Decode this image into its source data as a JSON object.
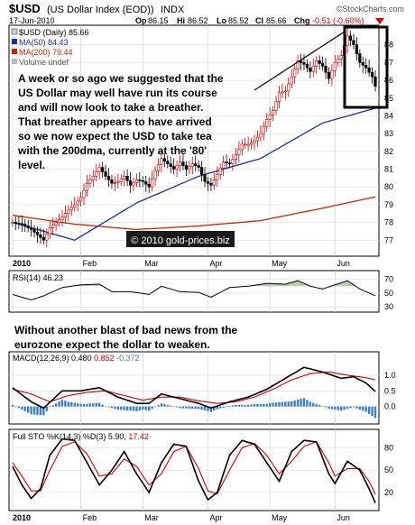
{
  "chart_data": {
    "type": "candlestick",
    "symbol": "$USD",
    "symbol_desc": "(US Dollar Index (EOD))",
    "exchange": "INDX",
    "date": "17-Jun-2010",
    "watermark": "©StockCharts.com",
    "quote": {
      "op_label": "Op",
      "op": "86.15",
      "hi_label": "Hi",
      "hi": "86.52",
      "lo_label": "Lo",
      "lo": "85.52",
      "cl_label": "Cl",
      "cl": "85.66",
      "chg_label": "Chg",
      "chg": "-0.51 (-0.60%)"
    },
    "legend": [
      {
        "label": "$USD (Daily) 85.66",
        "color": "#000000"
      },
      {
        "label": "MA(50) 84.43",
        "color": "#1f2f9f"
      },
      {
        "label": "MA(200) 79.44",
        "color": "#cc2200"
      },
      {
        "label": "Volume undef",
        "color": "#888888"
      }
    ],
    "colors": {
      "price": "#000000",
      "ma50": "#1f2f9f",
      "ma200": "#cc2200",
      "up": "#cc0000",
      "down": "#000000",
      "highlight_box": "#000000"
    },
    "copyright": "© 2010 gold-prices.biz",
    "annotation": "A week or so ago we suggested that the US Dollar may well have run its course and will now look to take a breather. That breather appears to have arrived so we now expect the USD to take tea with the 200dma, currently at the '80' level.",
    "annotation_lines": [
      "A week or so ago we suggested that the",
      "US Dollar may well have run its course",
      "and will now look to take a breather.",
      "That breather appears to have arrived",
      "so we now expect the USD to take tea",
      "with the 200dma, currently at the '80'",
      "level."
    ],
    "x_labels": [
      "2010",
      "Feb",
      "Mar",
      "Apr",
      "May",
      "Jun"
    ],
    "x_label_pos": [
      0,
      22,
      42,
      63,
      83,
      104
    ],
    "n_days": 118,
    "price_axis": {
      "ticks": [
        77,
        78,
        79,
        80,
        81,
        82,
        83,
        84,
        85,
        86,
        87,
        88
      ],
      "ylim": [
        76.2,
        89.0
      ]
    },
    "price_anchors": [
      [
        0,
        78.0
      ],
      [
        3,
        77.9
      ],
      [
        6,
        77.6
      ],
      [
        8,
        77.3
      ],
      [
        10,
        77.0
      ],
      [
        12,
        77.7
      ],
      [
        14,
        78.0
      ],
      [
        16,
        78.3
      ],
      [
        18,
        78.7
      ],
      [
        20,
        79.0
      ],
      [
        22,
        79.4
      ],
      [
        24,
        80.2
      ],
      [
        26,
        80.6
      ],
      [
        28,
        81.1
      ],
      [
        30,
        80.6
      ],
      [
        32,
        80.2
      ],
      [
        34,
        80.3
      ],
      [
        36,
        80.6
      ],
      [
        38,
        80.1
      ],
      [
        40,
        80.4
      ],
      [
        42,
        80.3
      ],
      [
        44,
        80.0
      ],
      [
        46,
        80.9
      ],
      [
        48,
        81.6
      ],
      [
        50,
        81.3
      ],
      [
        52,
        81.0
      ],
      [
        54,
        81.4
      ],
      [
        56,
        81.0
      ],
      [
        58,
        81.3
      ],
      [
        60,
        81.1
      ],
      [
        62,
        80.3
      ],
      [
        64,
        80.1
      ],
      [
        66,
        80.7
      ],
      [
        68,
        81.4
      ],
      [
        70,
        81.3
      ],
      [
        72,
        81.8
      ],
      [
        74,
        82.4
      ],
      [
        76,
        82.4
      ],
      [
        78,
        82.6
      ],
      [
        80,
        83.0
      ],
      [
        82,
        83.8
      ],
      [
        84,
        84.3
      ],
      [
        86,
        85.3
      ],
      [
        88,
        85.4
      ],
      [
        90,
        86.2
      ],
      [
        92,
        87.1
      ],
      [
        94,
        86.9
      ],
      [
        96,
        86.5
      ],
      [
        98,
        87.1
      ],
      [
        100,
        86.8
      ],
      [
        102,
        86.1
      ],
      [
        104,
        87.0
      ],
      [
        106,
        87.4
      ],
      [
        108,
        88.5
      ],
      [
        110,
        88.0
      ],
      [
        112,
        87.0
      ],
      [
        114,
        86.7
      ],
      [
        116,
        86.2
      ],
      [
        117,
        85.66
      ]
    ],
    "ma50_anchors": [
      [
        0,
        78.0
      ],
      [
        20,
        77.0
      ],
      [
        40,
        79.1
      ],
      [
        60,
        80.6
      ],
      [
        80,
        81.6
      ],
      [
        100,
        83.6
      ],
      [
        117,
        84.43
      ]
    ],
    "ma200_anchors": [
      [
        0,
        78.4
      ],
      [
        20,
        77.9
      ],
      [
        40,
        77.6
      ],
      [
        60,
        77.8
      ],
      [
        80,
        78.1
      ],
      [
        100,
        78.8
      ],
      [
        117,
        79.44
      ]
    ],
    "rsi": {
      "label": "RSI(14) 46.23",
      "ticks": [
        30,
        50,
        70
      ],
      "ylim": [
        25,
        80
      ],
      "anchors": [
        [
          0,
          48
        ],
        [
          6,
          40
        ],
        [
          10,
          46
        ],
        [
          16,
          58
        ],
        [
          22,
          62
        ],
        [
          28,
          63
        ],
        [
          32,
          52
        ],
        [
          38,
          52
        ],
        [
          44,
          48
        ],
        [
          48,
          60
        ],
        [
          54,
          52
        ],
        [
          60,
          51
        ],
        [
          64,
          44
        ],
        [
          70,
          58
        ],
        [
          76,
          60
        ],
        [
          82,
          64
        ],
        [
          88,
          63
        ],
        [
          92,
          68
        ],
        [
          96,
          60
        ],
        [
          100,
          56
        ],
        [
          104,
          62
        ],
        [
          108,
          68
        ],
        [
          112,
          56
        ],
        [
          117,
          46.23
        ]
      ]
    },
    "caption_lines": [
      "Without another blast of bad news from the",
      "eurozone expect the dollar to weaken."
    ],
    "macd": {
      "label": "MACD(12,26,9)",
      "macd_value": "0.480",
      "signal_value": "0.852",
      "hist_value": "-0.372",
      "ticks": [
        0.0,
        0.5,
        1.0
      ],
      "tick_labels": [
        "0.0",
        "0.5",
        "1.0"
      ],
      "ylim": [
        -0.5,
        1.4
      ],
      "macd_anchors": [
        [
          0,
          0.6
        ],
        [
          6,
          0.15
        ],
        [
          10,
          -0.05
        ],
        [
          16,
          0.5
        ],
        [
          22,
          0.5
        ],
        [
          28,
          0.6
        ],
        [
          34,
          0.3
        ],
        [
          40,
          0.1
        ],
        [
          44,
          0.1
        ],
        [
          48,
          0.4
        ],
        [
          54,
          0.25
        ],
        [
          60,
          0.1
        ],
        [
          64,
          -0.05
        ],
        [
          70,
          0.15
        ],
        [
          76,
          0.3
        ],
        [
          82,
          0.55
        ],
        [
          88,
          0.9
        ],
        [
          94,
          1.25
        ],
        [
          100,
          1.1
        ],
        [
          106,
          0.9
        ],
        [
          110,
          0.95
        ],
        [
          114,
          0.75
        ],
        [
          117,
          0.48
        ]
      ],
      "signal_anchors": [
        [
          0,
          0.55
        ],
        [
          6,
          0.4
        ],
        [
          12,
          0.15
        ],
        [
          18,
          0.35
        ],
        [
          24,
          0.45
        ],
        [
          30,
          0.5
        ],
        [
          36,
          0.35
        ],
        [
          42,
          0.2
        ],
        [
          48,
          0.3
        ],
        [
          54,
          0.3
        ],
        [
          60,
          0.18
        ],
        [
          66,
          0.1
        ],
        [
          72,
          0.15
        ],
        [
          78,
          0.3
        ],
        [
          84,
          0.55
        ],
        [
          90,
          0.85
        ],
        [
          96,
          1.05
        ],
        [
          102,
          1.1
        ],
        [
          108,
          1.0
        ],
        [
          114,
          0.92
        ],
        [
          117,
          0.852
        ]
      ]
    },
    "sto": {
      "label": "Full STO %K(14,3) %D(3) 5.90,",
      "d_value": "17.42",
      "ticks": [
        20,
        50,
        80
      ],
      "ylim": [
        -2,
        100
      ],
      "k_anchors": [
        [
          0,
          55
        ],
        [
          3,
          30
        ],
        [
          6,
          12
        ],
        [
          9,
          25
        ],
        [
          12,
          70
        ],
        [
          16,
          92
        ],
        [
          20,
          90
        ],
        [
          24,
          60
        ],
        [
          28,
          30
        ],
        [
          32,
          50
        ],
        [
          36,
          75
        ],
        [
          40,
          45
        ],
        [
          44,
          20
        ],
        [
          48,
          60
        ],
        [
          52,
          85
        ],
        [
          56,
          82
        ],
        [
          60,
          35
        ],
        [
          63,
          10
        ],
        [
          66,
          20
        ],
        [
          70,
          70
        ],
        [
          74,
          90
        ],
        [
          78,
          85
        ],
        [
          82,
          60
        ],
        [
          86,
          35
        ],
        [
          90,
          75
        ],
        [
          94,
          90
        ],
        [
          98,
          88
        ],
        [
          102,
          45
        ],
        [
          104,
          32
        ],
        [
          108,
          62
        ],
        [
          112,
          50
        ],
        [
          115,
          25
        ],
        [
          117,
          5.9
        ]
      ],
      "d_anchors": [
        [
          0,
          60
        ],
        [
          3,
          42
        ],
        [
          6,
          22
        ],
        [
          9,
          22
        ],
        [
          12,
          50
        ],
        [
          16,
          82
        ],
        [
          20,
          88
        ],
        [
          24,
          72
        ],
        [
          28,
          42
        ],
        [
          32,
          45
        ],
        [
          36,
          65
        ],
        [
          40,
          55
        ],
        [
          44,
          30
        ],
        [
          48,
          45
        ],
        [
          52,
          75
        ],
        [
          56,
          82
        ],
        [
          60,
          52
        ],
        [
          63,
          22
        ],
        [
          66,
          18
        ],
        [
          70,
          50
        ],
        [
          74,
          80
        ],
        [
          78,
          86
        ],
        [
          82,
          70
        ],
        [
          86,
          45
        ],
        [
          90,
          62
        ],
        [
          94,
          82
        ],
        [
          98,
          88
        ],
        [
          102,
          60
        ],
        [
          104,
          42
        ],
        [
          108,
          52
        ],
        [
          112,
          52
        ],
        [
          115,
          35
        ],
        [
          117,
          17.42
        ]
      ]
    }
  }
}
